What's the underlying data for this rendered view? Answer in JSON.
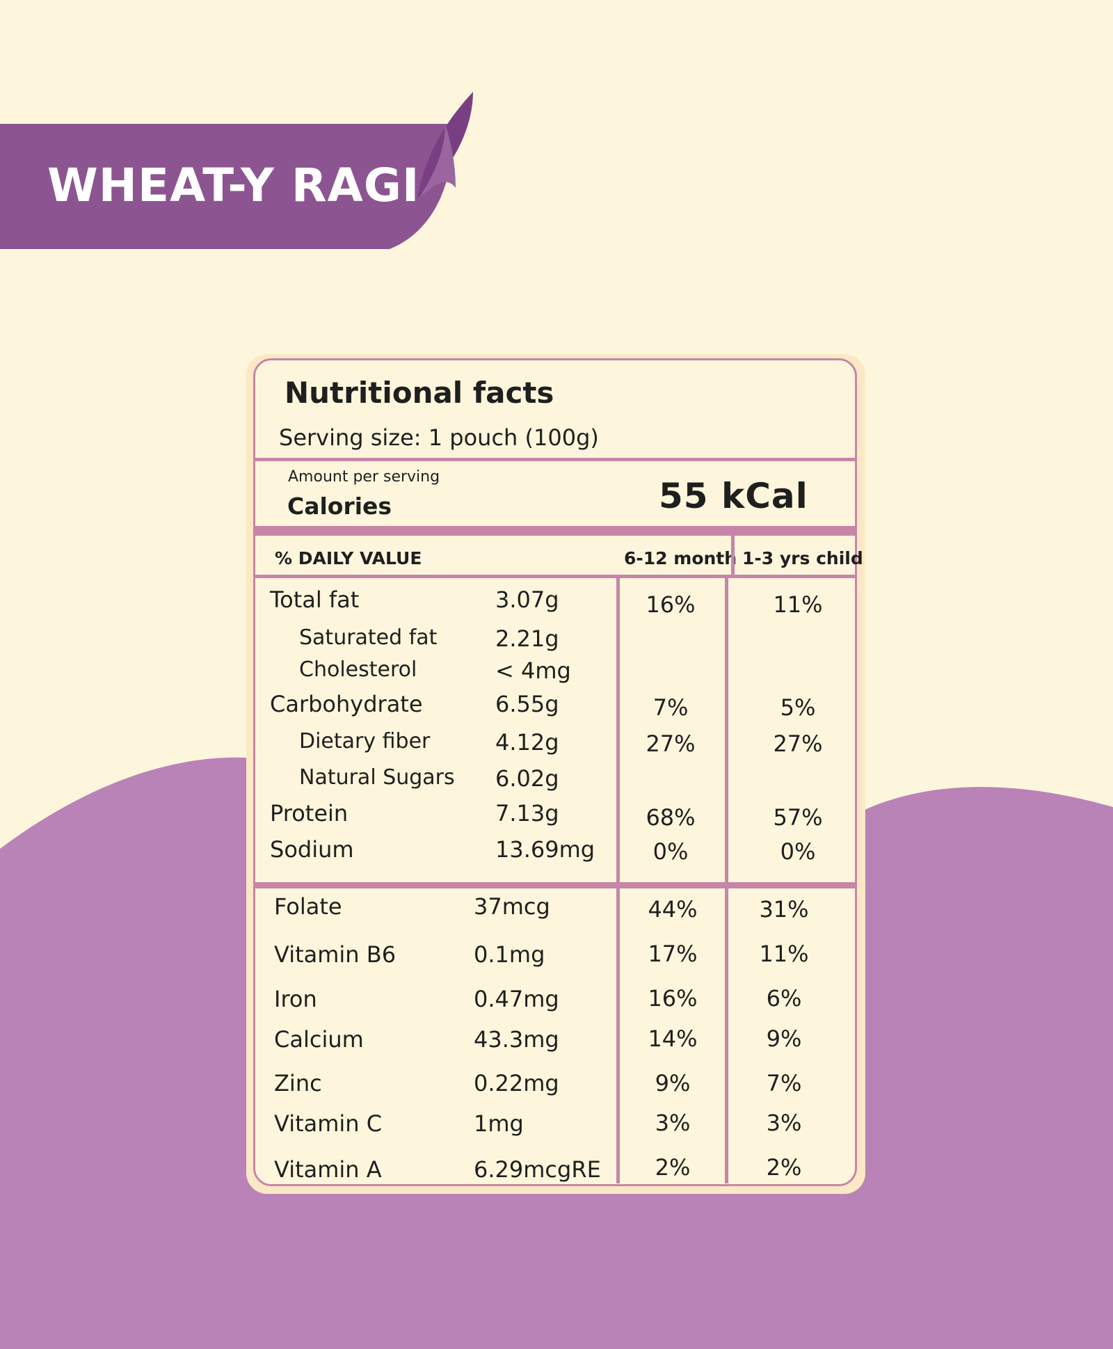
{
  "banner": {
    "title": "WHEAT-Y RAGI"
  },
  "colors": {
    "background": "#fdf6dc",
    "accent_purple": "#8c5591",
    "wave_purple": "#b983b8",
    "table_border": "#c785a8"
  },
  "label": {
    "title": "Nutritional facts",
    "serving": "Serving size:  1 pouch (100g)",
    "amount_per_serving": "Amount per serving",
    "calories_label": "Calories",
    "calories_value": "55 kCal",
    "daily_value_header": "% DAILY VALUE",
    "col1_header": "6-12 month",
    "col2_header": "1-3 yrs child",
    "macros": [
      {
        "name": "Total fat",
        "amount": "3.07g",
        "infant": "16%",
        "child": "11%"
      },
      {
        "name": "Saturated fat",
        "amount": "2.21g",
        "infant": "",
        "child": ""
      },
      {
        "name": "Cholesterol",
        "amount": "< 4mg",
        "infant": "",
        "child": ""
      },
      {
        "name": "Carbohydrate",
        "amount": "6.55g",
        "infant": "7%",
        "child": "5%"
      },
      {
        "name": "Dietary fiber",
        "amount": "4.12g",
        "infant": "27%",
        "child": "27%"
      },
      {
        "name": "Natural Sugars",
        "amount": "6.02g",
        "infant": "",
        "child": ""
      },
      {
        "name": "Protein",
        "amount": "7.13g",
        "infant": "68%",
        "child": "57%"
      },
      {
        "name": "Sodium",
        "amount": "13.69mg",
        "infant": "0%",
        "child": "0%"
      }
    ],
    "micros": [
      {
        "name": "Folate",
        "amount": "37mcg",
        "infant": "44%",
        "child": "31%"
      },
      {
        "name": "Vitamin B6",
        "amount": "0.1mg",
        "infant": "17%",
        "child": "11%"
      },
      {
        "name": "Iron",
        "amount": "0.47mg",
        "infant": "16%",
        "child": "6%"
      },
      {
        "name": "Calcium",
        "amount": "43.3mg",
        "infant": "14%",
        "child": "9%"
      },
      {
        "name": "Zinc",
        "amount": "0.22mg",
        "infant": "9%",
        "child": "7%"
      },
      {
        "name": "Vitamin C",
        "amount": "1mg",
        "infant": "3%",
        "child": "3%"
      },
      {
        "name": "Vitamin A",
        "amount": "6.29mcgRE",
        "infant": "2%",
        "child": "2%"
      }
    ]
  }
}
